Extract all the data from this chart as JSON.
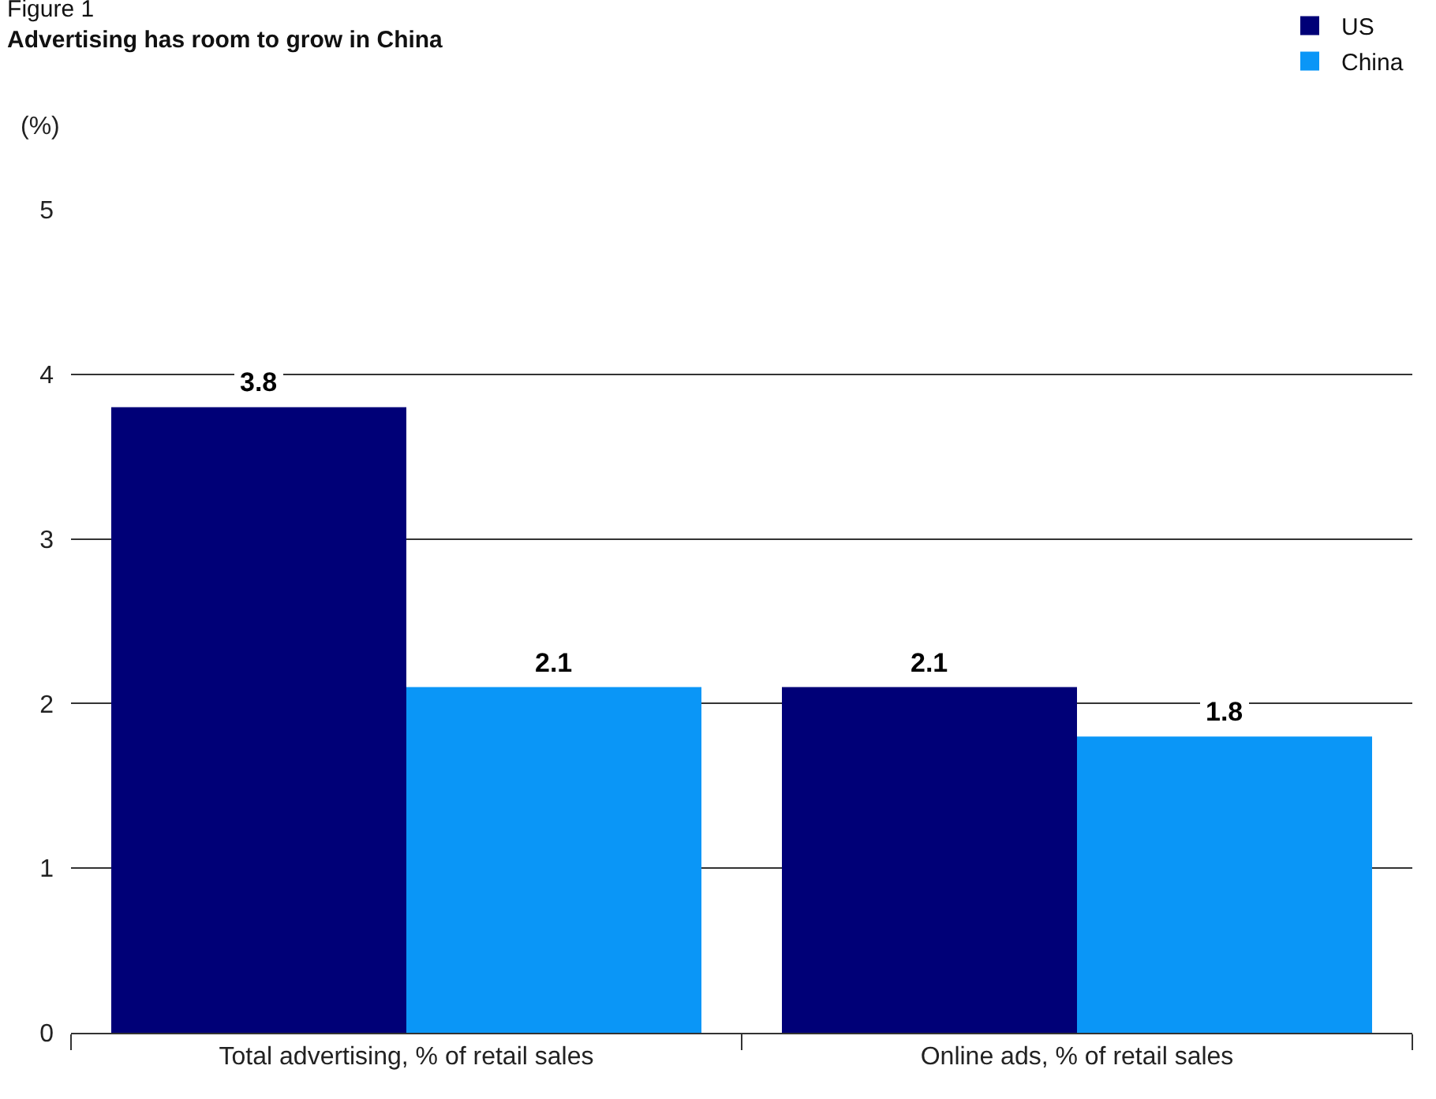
{
  "chart_data": {
    "type": "bar",
    "title": "Figure 1",
    "subtitle": "Advertising has room to grow in China",
    "ylabel": "(%)",
    "categories": [
      "Total advertising, % of retail sales",
      "Online ads, % of retail sales"
    ],
    "series": [
      {
        "name": "US",
        "color": "#000077",
        "values": [
          3.8,
          2.1
        ]
      },
      {
        "name": "China",
        "color": "#0a96f7",
        "values": [
          2.1,
          1.8
        ]
      }
    ],
    "ylim": [
      0,
      5
    ],
    "yticks": [
      0,
      1,
      2,
      3,
      4,
      5
    ],
    "grid": "y",
    "legend": "top right",
    "data_labels": true
  }
}
